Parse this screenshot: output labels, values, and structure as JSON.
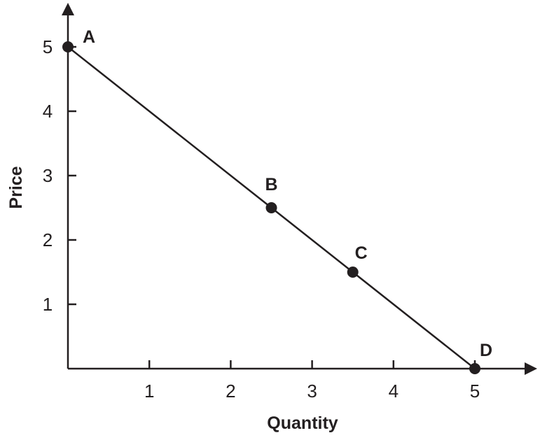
{
  "chart_data": {
    "type": "line",
    "title": "",
    "xlabel": "Quantity",
    "ylabel": "Price",
    "xlim": [
      0,
      5.6
    ],
    "ylim": [
      0,
      5.6
    ],
    "xticks": [
      "1",
      "2",
      "3",
      "4",
      "5"
    ],
    "yticks": [
      "1",
      "2",
      "3",
      "4",
      "5"
    ],
    "grid": false,
    "line_color": "#231f20",
    "points": [
      {
        "label": "A",
        "x": 0,
        "y": 5
      },
      {
        "label": "B",
        "x": 2.5,
        "y": 2.5
      },
      {
        "label": "C",
        "x": 3.5,
        "y": 1.5
      },
      {
        "label": "D",
        "x": 5,
        "y": 0
      }
    ]
  }
}
